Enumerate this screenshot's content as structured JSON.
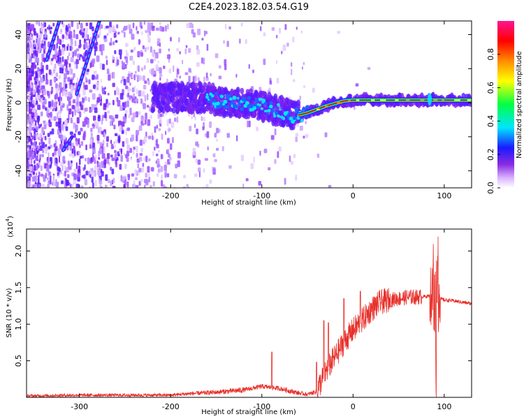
{
  "title": "C2E4.2023.182.03.54.G19",
  "colors": {
    "snr_line": "#e8302a",
    "axis": "#000000"
  },
  "chart_data": [
    {
      "type": "heatmap",
      "xlabel": "Height of straight line (km)",
      "ylabel": "Frequency (Hz)",
      "xlim": [
        -358,
        130
      ],
      "ylim": [
        -50,
        48
      ],
      "xticks": [
        "-300",
        "-200",
        "-100",
        "0",
        "100"
      ],
      "xtick_values": [
        -300,
        -200,
        -100,
        0,
        100
      ],
      "yticks": [
        "-40",
        "-20",
        "0",
        "20",
        "40"
      ],
      "ytick_values": [
        -40,
        -20,
        0,
        20,
        40
      ],
      "colorbar": {
        "label": "Normalized spectral amplitude",
        "range": [
          0,
          1
        ],
        "ticks": [
          "0.0",
          "0.2",
          "0.4",
          "0.6",
          "0.8"
        ],
        "tick_values": [
          0.0,
          0.2,
          0.4,
          0.6,
          0.8
        ],
        "colormap": [
          "#ffffff",
          "#d9b3ff",
          "#8a2be2",
          "#1a1aff",
          "#00e5ff",
          "#00ff44",
          "#ffff00",
          "#ff8c00",
          "#ff0000",
          "#ff1493"
        ]
      },
      "features": [
        {
          "name": "main signal track",
          "x": [
            -170,
            -130,
            -100,
            -80,
            -65,
            -50,
            -30,
            -10,
            0,
            50,
            85,
            100,
            130
          ],
          "y": [
            3,
            0,
            -2,
            -5,
            -8,
            -6,
            -2,
            1,
            1.5,
            1.5,
            1.5,
            1.5,
            1.5
          ],
          "peak_amplitude": 1.0
        },
        {
          "name": "diagonal streak 1",
          "x": [
            -336,
            -322
          ],
          "y": [
            25,
            48
          ]
        },
        {
          "name": "diagonal streak 2",
          "x": [
            -303,
            -278
          ],
          "y": [
            5,
            48
          ]
        },
        {
          "name": "diagonal streak 3",
          "x": [
            -318,
            -308
          ],
          "y": [
            -28,
            -20
          ]
        }
      ]
    },
    {
      "type": "line",
      "xlabel": "Height of straight line (km)",
      "ylabel": "SNR (10 * v/v)",
      "y_multiplier": "(x10",
      "y_multiplier_exp": "4",
      "y_multiplier_close": ")",
      "xlim": [
        -358,
        130
      ],
      "ylim": [
        0,
        2.3
      ],
      "xticks": [
        "-300",
        "-200",
        "-100",
        "0",
        "100"
      ],
      "xtick_values": [
        -300,
        -200,
        -100,
        0,
        100
      ],
      "yticks": [
        "0.5",
        "1.0",
        "1.5",
        "2.0"
      ],
      "ytick_values": [
        0.5,
        1.0,
        1.5,
        2.0
      ],
      "series": [
        {
          "x": [
            -358,
            -300,
            -250,
            -200,
            -180,
            -150,
            -120,
            -100,
            -80,
            -60,
            -50,
            -40,
            -30,
            -20,
            -10,
            0,
            10,
            20,
            30,
            40,
            50,
            60,
            70,
            80,
            85,
            90,
            92,
            95,
            100,
            110,
            120,
            130
          ],
          "y": [
            0.02,
            0.03,
            0.03,
            0.03,
            0.05,
            0.07,
            0.1,
            0.15,
            0.12,
            0.06,
            0.04,
            0.08,
            0.35,
            0.55,
            0.75,
            0.92,
            1.05,
            1.2,
            1.3,
            1.33,
            1.35,
            1.37,
            1.37,
            1.38,
            1.39,
            1.37,
            1.38,
            1.35,
            1.33,
            1.32,
            1.3,
            1.28
          ]
        }
      ],
      "spikes": [
        {
          "x": -89,
          "y": 0.62
        },
        {
          "x": -40,
          "y": 0.48
        },
        {
          "x": -32,
          "y": 1.05
        },
        {
          "x": -27,
          "y": 1.02
        },
        {
          "x": -10,
          "y": 1.35
        },
        {
          "x": 8,
          "y": 1.45
        },
        {
          "x": 88,
          "y": 2.05
        },
        {
          "x": 91,
          "y": 0.45
        },
        {
          "x": 93,
          "y": 2.28
        }
      ]
    }
  ]
}
